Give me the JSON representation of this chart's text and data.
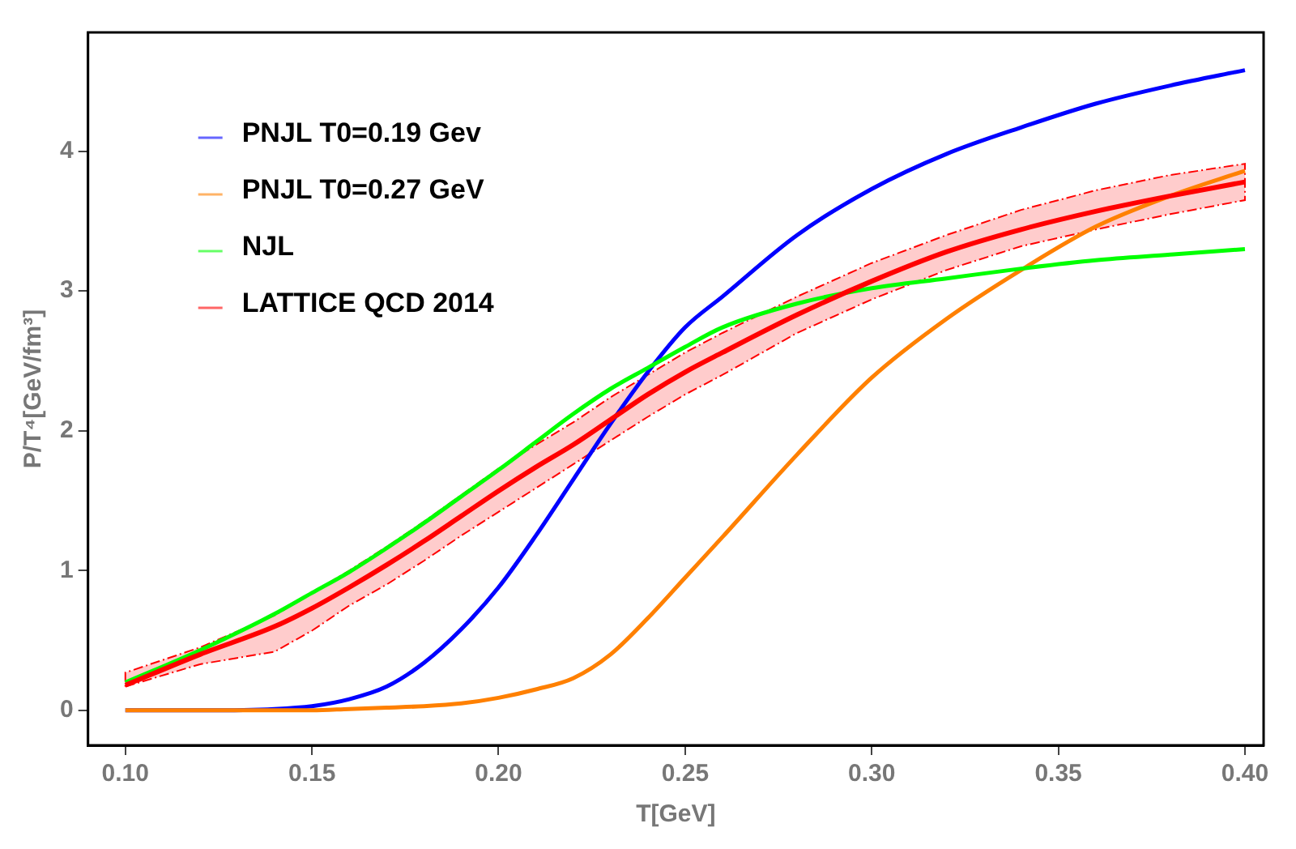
{
  "chart_data": {
    "type": "line",
    "xlabel": "T[GeV]",
    "ylabel": "P/T⁴[GeV/fm³]",
    "x": [
      0.1,
      0.12,
      0.14,
      0.15,
      0.16,
      0.17,
      0.18,
      0.19,
      0.2,
      0.21,
      0.22,
      0.23,
      0.24,
      0.25,
      0.26,
      0.28,
      0.3,
      0.32,
      0.34,
      0.36,
      0.38,
      0.4
    ],
    "series": [
      {
        "name": "PNJL T0=0.19 Gev",
        "color": "#0000ff",
        "values": [
          0,
          0,
          0.01,
          0.03,
          0.08,
          0.17,
          0.34,
          0.58,
          0.88,
          1.25,
          1.65,
          2.05,
          2.42,
          2.74,
          2.96,
          3.4,
          3.73,
          3.98,
          4.17,
          4.34,
          4.47,
          4.58
        ]
      },
      {
        "name": "PNJL T0=0.27 GeV",
        "color": "#ff8000",
        "values": [
          0,
          0,
          0,
          0,
          0.01,
          0.02,
          0.03,
          0.05,
          0.09,
          0.15,
          0.23,
          0.4,
          0.66,
          0.95,
          1.24,
          1.83,
          2.38,
          2.8,
          3.15,
          3.46,
          3.68,
          3.86
        ]
      },
      {
        "name": "NJL",
        "color": "#00ff00",
        "values": [
          0.2,
          0.43,
          0.69,
          0.84,
          0.99,
          1.16,
          1.34,
          1.53,
          1.72,
          1.92,
          2.12,
          2.3,
          2.45,
          2.6,
          2.74,
          2.91,
          3.02,
          3.09,
          3.16,
          3.22,
          3.26,
          3.3
        ]
      },
      {
        "name": "LATTICE QCD 2014",
        "color": "#ff0000",
        "values": [
          0.18,
          0.4,
          0.6,
          0.73,
          0.88,
          1.04,
          1.21,
          1.39,
          1.57,
          1.74,
          1.9,
          2.08,
          2.26,
          2.42,
          2.56,
          2.83,
          3.07,
          3.28,
          3.44,
          3.57,
          3.68,
          3.78
        ],
        "lower": [
          0.17,
          0.33,
          0.42,
          0.57,
          0.75,
          0.9,
          1.07,
          1.25,
          1.42,
          1.59,
          1.76,
          1.93,
          2.1,
          2.26,
          2.4,
          2.7,
          2.94,
          3.15,
          3.32,
          3.44,
          3.55,
          3.65
        ],
        "upper": [
          0.27,
          0.45,
          0.68,
          0.84,
          1.0,
          1.17,
          1.35,
          1.54,
          1.73,
          1.9,
          2.06,
          2.24,
          2.4,
          2.56,
          2.7,
          2.96,
          3.2,
          3.4,
          3.58,
          3.72,
          3.83,
          3.91
        ]
      }
    ],
    "xlim": [
      0.09,
      0.405
    ],
    "ylim": [
      -0.25,
      4.85
    ],
    "xticks": [
      {
        "value": 0.1,
        "label": "0.10"
      },
      {
        "value": 0.15,
        "label": "0.15"
      },
      {
        "value": 0.2,
        "label": "0.20"
      },
      {
        "value": 0.25,
        "label": "0.25"
      },
      {
        "value": 0.3,
        "label": "0.30"
      },
      {
        "value": 0.35,
        "label": "0.35"
      },
      {
        "value": 0.4,
        "label": "0.40"
      }
    ],
    "yticks": [
      0,
      1,
      2,
      3,
      4
    ],
    "grid": false,
    "legend": "top left",
    "marker": "none",
    "line_style": "solid"
  }
}
